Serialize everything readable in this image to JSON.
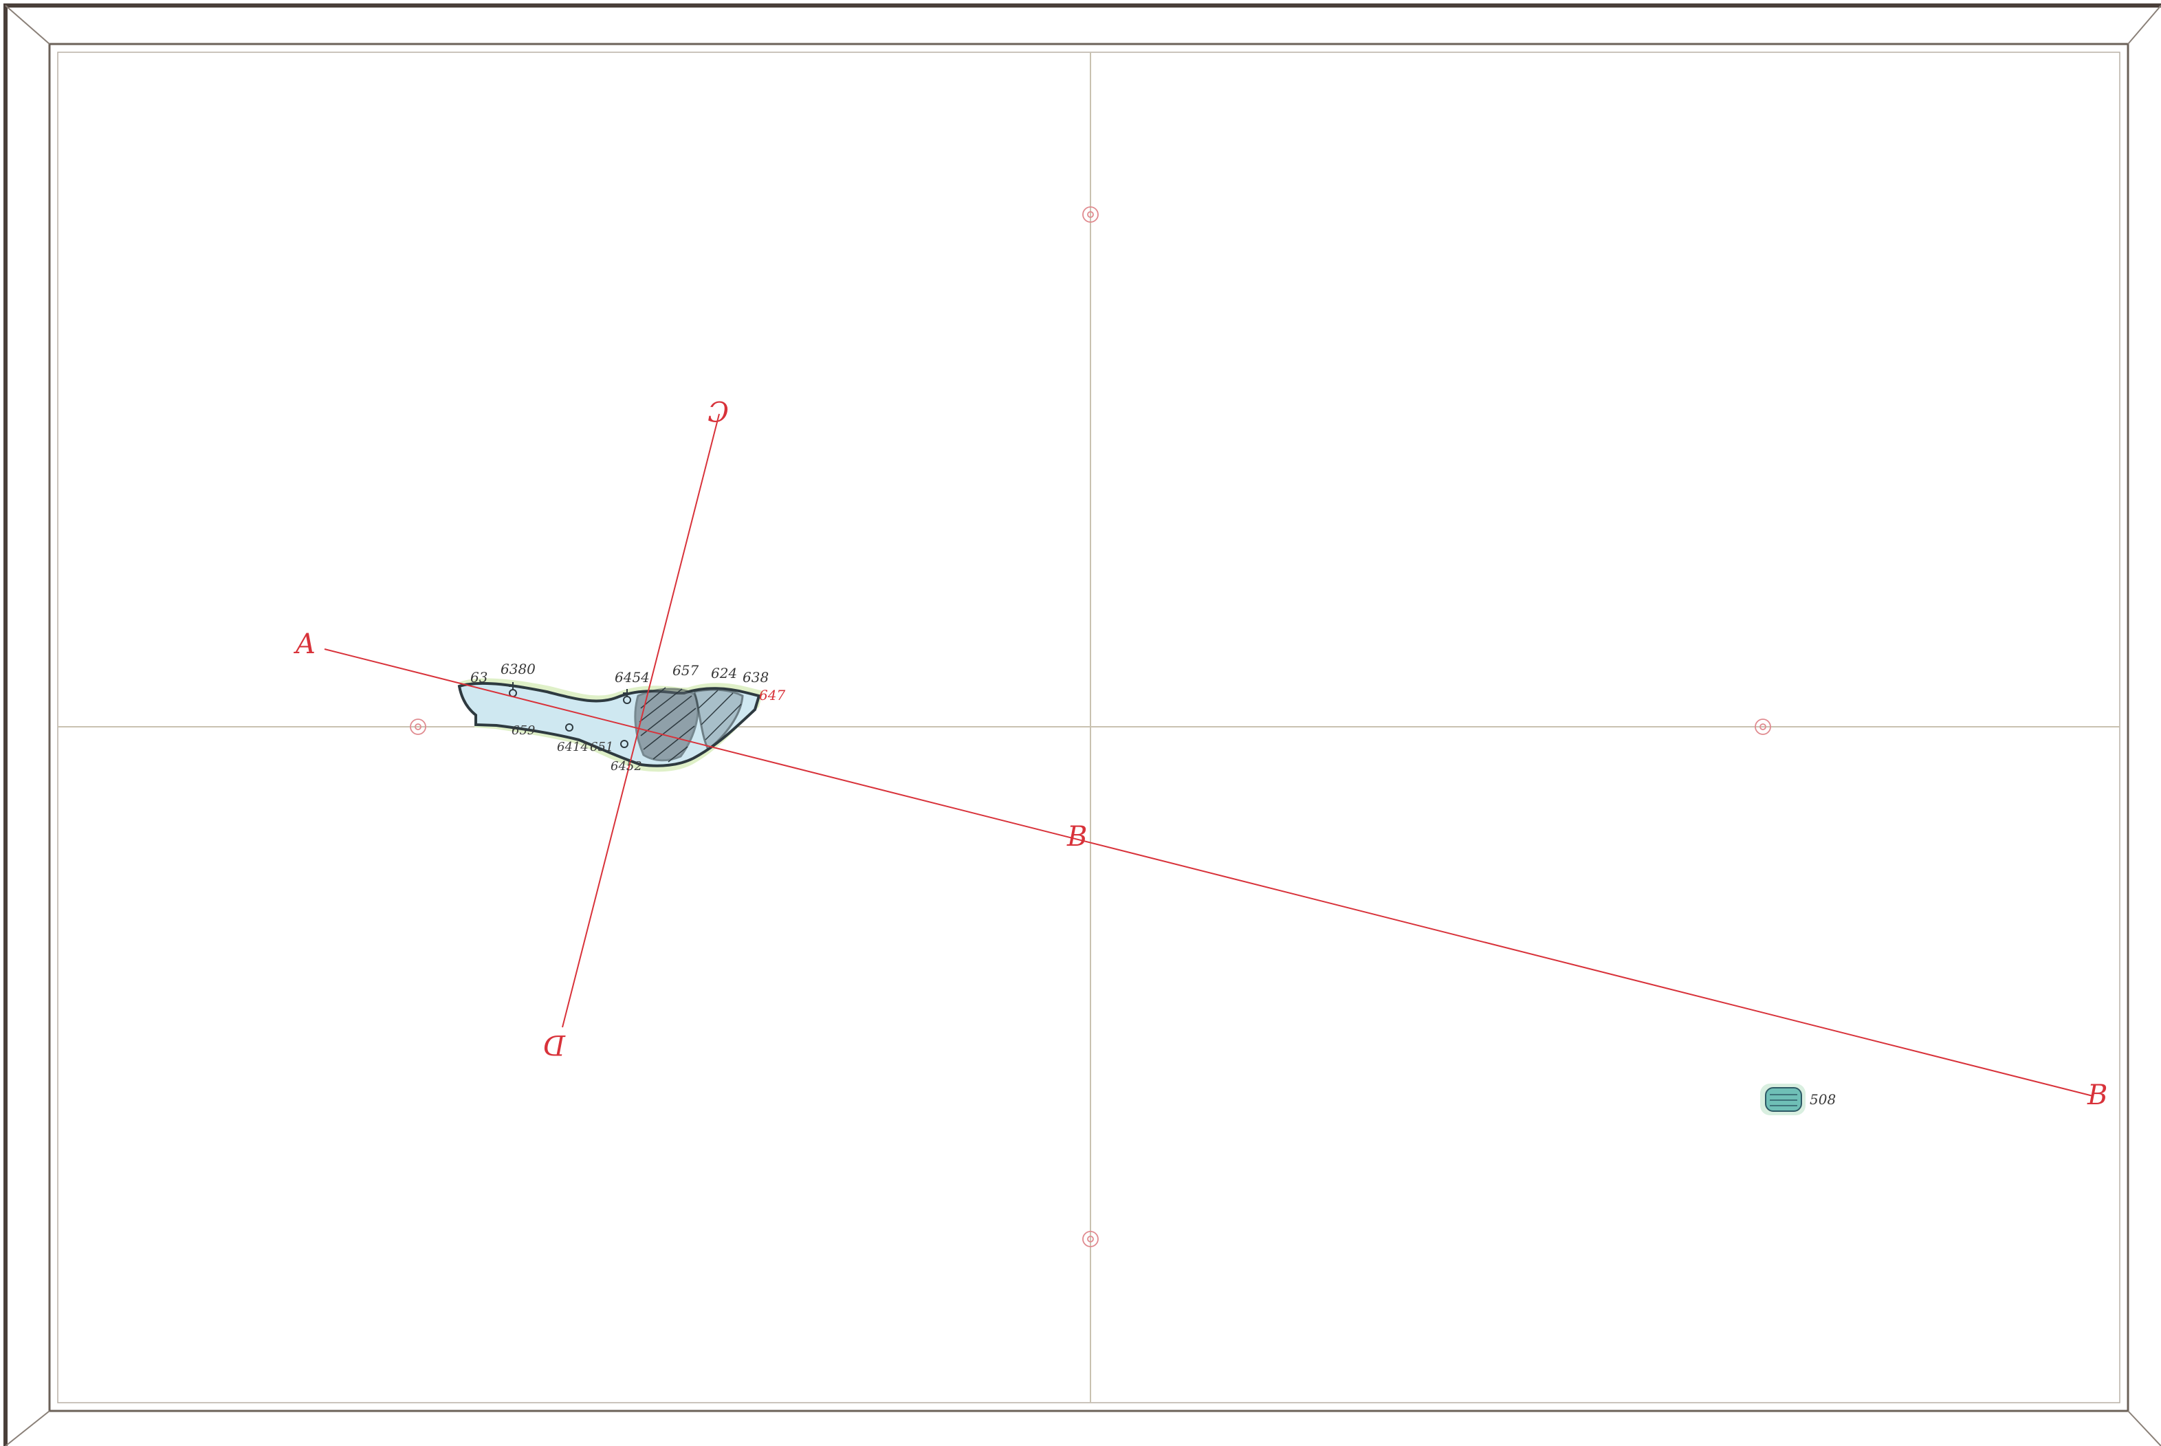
{
  "section_lines": {
    "line_ab": {
      "start_label": "A",
      "end_label": "B",
      "mid_label": "B"
    },
    "line_cd": {
      "start_label": "C",
      "end_label": "D"
    }
  },
  "soundings": {
    "s1": "63",
    "s2": "6380",
    "s3": "6454",
    "s4": "657",
    "s5": "624",
    "s6": "638",
    "s7": "647",
    "s8": "659",
    "s9": "6414",
    "s10": "651",
    "s11": "6452"
  },
  "pond": {
    "label": "508"
  },
  "colors": {
    "line_red": "#d8323a",
    "water_blue": "#cfe8f1",
    "pond_teal": "#6fbfb6",
    "frame": "#4a3f3a",
    "grid": "#c9c2b0"
  }
}
